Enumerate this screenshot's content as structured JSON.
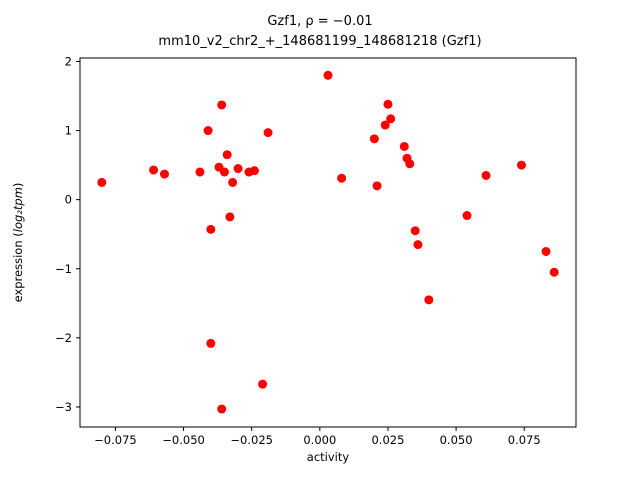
{
  "chart_data": {
    "type": "scatter",
    "title_line1": "Gzf1, ρ = −0.01",
    "title_line2": "mm10_v2_chr2_+_148681199_148681218 (Gzf1)",
    "xlabel": "activity",
    "ylabel_prefix": "expression (",
    "ylabel_math": "log₂tpm",
    "ylabel_suffix": ")",
    "marker_color": "#ff0000",
    "frame_color": "#000000",
    "legend": "none",
    "grid": false,
    "xlim": [
      -0.088,
      0.094
    ],
    "ylim": [
      -3.29,
      2.05
    ],
    "xticks": [
      {
        "v": -0.075,
        "label": "−0.075"
      },
      {
        "v": -0.05,
        "label": "−0.050"
      },
      {
        "v": -0.025,
        "label": "−0.025"
      },
      {
        "v": 0.0,
        "label": "0.000"
      },
      {
        "v": 0.025,
        "label": "0.025"
      },
      {
        "v": 0.05,
        "label": "0.050"
      },
      {
        "v": 0.075,
        "label": "0.075"
      }
    ],
    "yticks": [
      {
        "v": -3,
        "label": "−3"
      },
      {
        "v": -2,
        "label": "−2"
      },
      {
        "v": -1,
        "label": "−1"
      },
      {
        "v": 0,
        "label": "0"
      },
      {
        "v": 1,
        "label": "1"
      },
      {
        "v": 2,
        "label": "2"
      }
    ],
    "points": [
      [
        -0.08,
        0.25
      ],
      [
        -0.061,
        0.43
      ],
      [
        -0.057,
        0.37
      ],
      [
        -0.044,
        0.4
      ],
      [
        -0.041,
        1.0
      ],
      [
        -0.04,
        -0.43
      ],
      [
        -0.04,
        -2.08
      ],
      [
        -0.037,
        0.47
      ],
      [
        -0.036,
        1.37
      ],
      [
        -0.036,
        -3.03
      ],
      [
        -0.035,
        0.4
      ],
      [
        -0.034,
        0.65
      ],
      [
        -0.033,
        -0.25
      ],
      [
        -0.032,
        0.25
      ],
      [
        -0.03,
        0.45
      ],
      [
        -0.026,
        0.4
      ],
      [
        -0.024,
        0.42
      ],
      [
        -0.021,
        -2.67
      ],
      [
        -0.019,
        0.97
      ],
      [
        0.003,
        1.8
      ],
      [
        0.008,
        0.31
      ],
      [
        0.02,
        0.88
      ],
      [
        0.021,
        0.2
      ],
      [
        0.024,
        1.08
      ],
      [
        0.025,
        1.38
      ],
      [
        0.026,
        1.17
      ],
      [
        0.031,
        0.77
      ],
      [
        0.032,
        0.6
      ],
      [
        0.033,
        0.52
      ],
      [
        0.035,
        -0.45
      ],
      [
        0.036,
        -0.65
      ],
      [
        0.04,
        -1.45
      ],
      [
        0.054,
        -0.23
      ],
      [
        0.061,
        0.35
      ],
      [
        0.074,
        0.5
      ],
      [
        0.083,
        -0.75
      ],
      [
        0.086,
        -1.05
      ]
    ]
  }
}
